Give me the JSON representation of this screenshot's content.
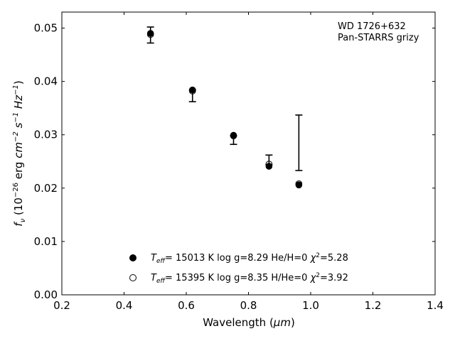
{
  "chart_data": {
    "type": "scatter",
    "title": "",
    "xlabel_main": "Wavelength (",
    "xlabel_unit": "μm",
    "xlabel_close": ")",
    "ylabel": {
      "f": "f",
      "nu": "ν",
      "open": " (10",
      "exp1": "−26",
      "erg": " erg ",
      "cm": "cm",
      "exp2": "−2",
      "s": " s",
      "exp3": "−1",
      "hz": " Hz",
      "exp4": "−1",
      "close": ")"
    },
    "xlim": [
      0.2,
      1.4
    ],
    "ylim": [
      0.0,
      0.053
    ],
    "xticks": [
      0.2,
      0.4,
      0.6,
      0.8,
      1.0,
      1.2,
      1.4
    ],
    "xtick_labels": [
      "0.2",
      "0.4",
      "0.6",
      "0.8",
      "1.0",
      "1.2",
      "1.4"
    ],
    "yticks": [
      0.0,
      0.01,
      0.02,
      0.03,
      0.04,
      0.05
    ],
    "ytick_labels": [
      "0.00",
      "0.01",
      "0.02",
      "0.03",
      "0.04",
      "0.05"
    ],
    "annotation_lines": [
      "WD 1726+632",
      "Pan-STARRS grizy"
    ],
    "observed": {
      "x": [
        0.485,
        0.62,
        0.752,
        0.866,
        0.962
      ],
      "y": [
        0.0487,
        0.0373,
        0.029,
        0.0253,
        0.0285
      ],
      "yerr": [
        0.0015,
        0.0011,
        0.0008,
        0.0009,
        0.0052
      ]
    },
    "series": [
      {
        "marker": "filled",
        "x": [
          0.485,
          0.62,
          0.752,
          0.866,
          0.962
        ],
        "y": [
          0.049,
          0.0384,
          0.0299,
          0.0241,
          0.0206
        ],
        "legend": {
          "T": "T",
          "eff": "eff",
          "rest": "= 15013 K  log g=8.29  He/H=0  ",
          "chi": "χ",
          "sq": "2",
          "chival": "=5.28"
        }
      },
      {
        "marker": "open",
        "x": [
          0.485,
          0.62,
          0.752,
          0.866,
          0.962
        ],
        "y": [
          0.0488,
          0.0382,
          0.0298,
          0.0245,
          0.0208
        ],
        "legend": {
          "T": "T",
          "eff": "eff",
          "rest": "= 15395 K  log g=8.35  H/He=0  ",
          "chi": "χ",
          "sq": "2",
          "chival": "=3.92"
        }
      }
    ],
    "legend_placement": "lower-center",
    "grid": false
  }
}
